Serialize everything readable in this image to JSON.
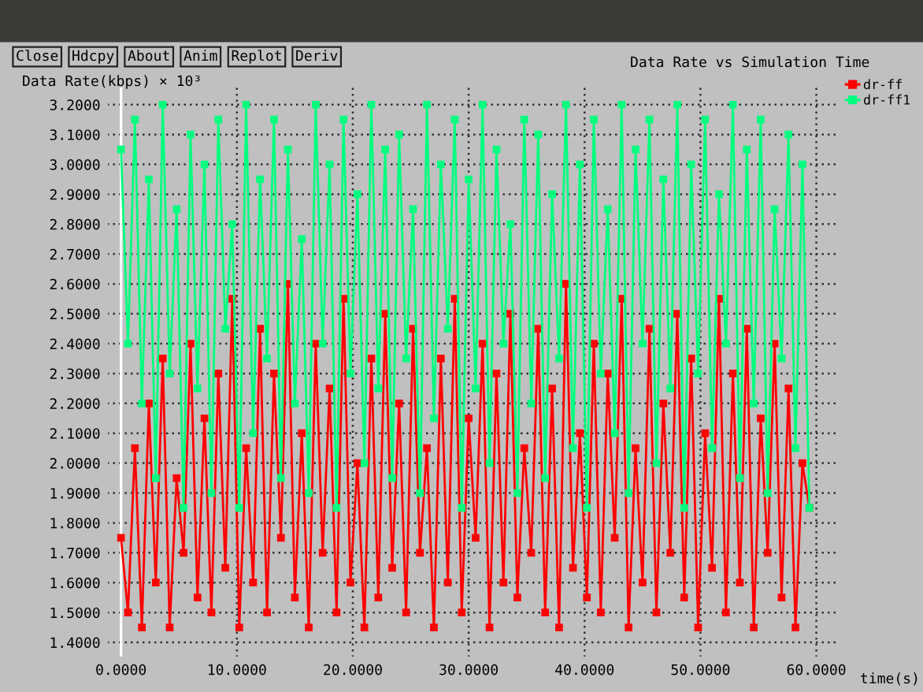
{
  "chart_data": {
    "type": "line",
    "title": "Data Rate vs Simulation Time",
    "ylabel": "Data Rate(kbps) × 10³",
    "xlabel": "time(s)",
    "annotations": [
      "Close",
      "Hdcpy",
      "About",
      "Anim",
      "Replot",
      "Deriv"
    ],
    "x": [
      0.0,
      0.6,
      1.2,
      1.8,
      2.4,
      3.0,
      3.6,
      4.2,
      4.8,
      5.4,
      6.0,
      6.6,
      7.2,
      7.8,
      8.4,
      9.0,
      9.6,
      10.2,
      10.8,
      11.4,
      12.0,
      12.6,
      13.2,
      13.8,
      14.4,
      15.0,
      15.6,
      16.2,
      16.8,
      17.4,
      18.0,
      18.6,
      19.2,
      19.8,
      20.4,
      21.0,
      21.6,
      22.2,
      22.8,
      23.4,
      24.0,
      24.6,
      25.2,
      25.8,
      26.4,
      27.0,
      27.6,
      28.2,
      28.8,
      29.4,
      30.0,
      30.6,
      31.2,
      31.8,
      32.4,
      33.0,
      33.6,
      34.2,
      34.8,
      35.4,
      36.0,
      36.6,
      37.2,
      37.8,
      38.4,
      39.0,
      39.6,
      40.2,
      40.8,
      41.4,
      42.0,
      42.6,
      43.2,
      43.8,
      44.4,
      45.0,
      45.6,
      46.2,
      46.8,
      47.4,
      48.0,
      48.6,
      49.2,
      49.8,
      50.4,
      51.0,
      51.6,
      52.2,
      52.8,
      53.4,
      54.0,
      54.6,
      55.2,
      55.8,
      56.4,
      57.0,
      57.6,
      58.2,
      58.8,
      59.4
    ],
    "series": [
      {
        "name": "dr-ff",
        "color": "#ff0000",
        "values": [
          1.75,
          1.5,
          2.05,
          1.45,
          2.2,
          1.6,
          2.35,
          1.45,
          1.95,
          1.7,
          2.4,
          1.55,
          2.15,
          1.5,
          2.3,
          1.65,
          2.55,
          1.45,
          2.05,
          1.6,
          2.45,
          1.5,
          2.3,
          1.75,
          2.6,
          1.55,
          2.1,
          1.45,
          2.4,
          1.7,
          2.25,
          1.5,
          2.55,
          1.6,
          2.0,
          1.45,
          2.35,
          1.55,
          2.5,
          1.65,
          2.2,
          1.5,
          2.45,
          1.7,
          2.05,
          1.45,
          2.35,
          1.6,
          2.55,
          1.5,
          2.15,
          1.75,
          2.4,
          1.45,
          2.3,
          1.6,
          2.5,
          1.55,
          2.05,
          1.7,
          2.45,
          1.5,
          2.25,
          1.45,
          2.6,
          1.65,
          2.1,
          1.55,
          2.4,
          1.5,
          2.3,
          1.75,
          2.55,
          1.45,
          2.05,
          1.6,
          2.45,
          1.5,
          2.2,
          1.7,
          2.5,
          1.55,
          2.35,
          1.45,
          2.1,
          1.65,
          2.55,
          1.5,
          2.3,
          1.6,
          2.45,
          1.45,
          2.15,
          1.7,
          2.4,
          1.55,
          2.25,
          1.45,
          2.0,
          1.85
        ]
      },
      {
        "name": "dr-ff1",
        "color": "#00ff7f",
        "values": [
          3.05,
          2.4,
          3.15,
          2.2,
          2.95,
          1.95,
          3.2,
          2.3,
          2.85,
          1.85,
          3.1,
          2.25,
          3.0,
          1.9,
          3.15,
          2.45,
          2.8,
          1.85,
          3.2,
          2.1,
          2.95,
          2.35,
          3.15,
          1.95,
          3.05,
          2.2,
          2.75,
          1.9,
          3.2,
          2.4,
          3.0,
          1.85,
          3.15,
          2.3,
          2.9,
          2.0,
          3.2,
          2.25,
          3.05,
          1.95,
          3.1,
          2.35,
          2.85,
          1.9,
          3.2,
          2.15,
          3.0,
          2.45,
          3.15,
          1.85,
          2.95,
          2.25,
          3.2,
          2.0,
          3.05,
          2.4,
          2.8,
          1.9,
          3.15,
          2.2,
          3.1,
          1.95,
          2.9,
          2.35,
          3.2,
          2.05,
          3.0,
          1.85,
          3.15,
          2.3,
          2.85,
          2.1,
          3.2,
          1.9,
          3.05,
          2.4,
          3.15,
          2.0,
          2.95,
          2.25,
          3.2,
          1.85,
          3.0,
          2.3,
          3.15,
          2.05,
          2.9,
          2.4,
          3.2,
          1.95,
          3.05,
          2.2,
          3.15,
          1.9,
          2.85,
          2.35,
          3.1,
          2.05,
          3.0,
          1.85
        ]
      }
    ],
    "xlim": [
      -1.2,
      62
    ],
    "ylim": [
      1.35,
      3.26
    ],
    "xticks": [
      {
        "value": 0,
        "label": "0.0000"
      },
      {
        "value": 10,
        "label": "10.0000"
      },
      {
        "value": 20,
        "label": "20.0000"
      },
      {
        "value": 30,
        "label": "30.0000"
      },
      {
        "value": 40,
        "label": "40.0000"
      },
      {
        "value": 50,
        "label": "50.0000"
      },
      {
        "value": 60,
        "label": "60.0000"
      }
    ],
    "yticks": [
      {
        "value": 1.4,
        "label": "1.4000"
      },
      {
        "value": 1.5,
        "label": "1.5000"
      },
      {
        "value": 1.6,
        "label": "1.6000"
      },
      {
        "value": 1.7,
        "label": "1.7000"
      },
      {
        "value": 1.8,
        "label": "1.8000"
      },
      {
        "value": 1.9,
        "label": "1.9000"
      },
      {
        "value": 2.0,
        "label": "2.0000"
      },
      {
        "value": 2.1,
        "label": "2.1000"
      },
      {
        "value": 2.2,
        "label": "2.2000"
      },
      {
        "value": 2.3,
        "label": "2.3000"
      },
      {
        "value": 2.4,
        "label": "2.4000"
      },
      {
        "value": 2.5,
        "label": "2.5000"
      },
      {
        "value": 2.6,
        "label": "2.6000"
      },
      {
        "value": 2.7,
        "label": "2.7000"
      },
      {
        "value": 2.8,
        "label": "2.8000"
      },
      {
        "value": 2.9,
        "label": "2.9000"
      },
      {
        "value": 3.0,
        "label": "3.0000"
      },
      {
        "value": 3.1,
        "label": "3.1000"
      },
      {
        "value": 3.2,
        "label": "3.2000"
      }
    ],
    "grid": true,
    "legend": "top right",
    "marker": "square",
    "line_style": "solid"
  }
}
